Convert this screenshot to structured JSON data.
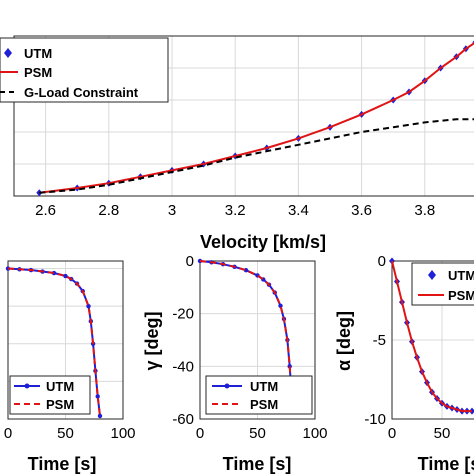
{
  "colors": {
    "utm": "#1f1fd6",
    "psm": "#e01414",
    "gload": "#000000",
    "grid": "#d9d9d9",
    "axis": "#262626"
  },
  "chart_data": [
    {
      "type": "line",
      "xlabel": "Velocity [km/s]",
      "ylabel": "",
      "xlim": [
        2.5,
        4.0
      ],
      "ylim": [
        0,
        1
      ],
      "xticks": [
        "2.6",
        "2.8",
        "3",
        "3.2",
        "3.4",
        "3.6",
        "3.8"
      ],
      "grid": true,
      "legend": "top-left",
      "series": [
        {
          "name": "UTM",
          "style": "diamond-markers",
          "x": [
            2.58,
            2.7,
            2.8,
            2.9,
            3.0,
            3.1,
            3.2,
            3.3,
            3.4,
            3.5,
            3.6,
            3.7,
            3.75,
            3.8,
            3.85,
            3.9,
            3.93,
            3.96,
            3.98,
            4.0
          ],
          "y": [
            0.02,
            0.05,
            0.08,
            0.12,
            0.16,
            0.2,
            0.25,
            0.3,
            0.36,
            0.43,
            0.51,
            0.6,
            0.65,
            0.72,
            0.8,
            0.87,
            0.92,
            0.96,
            0.98,
            1.0
          ]
        },
        {
          "name": "PSM",
          "style": "solid",
          "x": [
            2.58,
            2.7,
            2.8,
            2.9,
            3.0,
            3.1,
            3.2,
            3.3,
            3.4,
            3.5,
            3.6,
            3.7,
            3.75,
            3.8,
            3.85,
            3.9,
            3.93,
            3.96,
            3.98,
            4.0
          ],
          "y": [
            0.02,
            0.05,
            0.08,
            0.12,
            0.16,
            0.2,
            0.25,
            0.3,
            0.36,
            0.43,
            0.51,
            0.6,
            0.65,
            0.72,
            0.8,
            0.87,
            0.92,
            0.96,
            0.98,
            1.0
          ]
        },
        {
          "name": "G-Load Constraint",
          "style": "dashed",
          "x": [
            2.58,
            2.7,
            2.8,
            2.9,
            3.0,
            3.1,
            3.2,
            3.3,
            3.4,
            3.5,
            3.6,
            3.7,
            3.8,
            3.9,
            4.0
          ],
          "y": [
            0.02,
            0.04,
            0.07,
            0.11,
            0.15,
            0.19,
            0.24,
            0.28,
            0.32,
            0.36,
            0.4,
            0.43,
            0.46,
            0.48,
            0.48
          ]
        }
      ]
    },
    {
      "type": "line",
      "xlabel": "Time [s]",
      "ylabel": "",
      "xlim": [
        0,
        100
      ],
      "ylim": [
        -1,
        0.05
      ],
      "xticks": [
        "0",
        "50",
        "100"
      ],
      "grid": true,
      "legend": "bottom-left",
      "series": [
        {
          "name": "UTM",
          "style": "solid-markers",
          "x": [
            0,
            10,
            20,
            30,
            40,
            50,
            55,
            60,
            65,
            70,
            72,
            74,
            76,
            78,
            80
          ],
          "y": [
            0,
            -0.005,
            -0.01,
            -0.02,
            -0.03,
            -0.05,
            -0.07,
            -0.1,
            -0.15,
            -0.25,
            -0.35,
            -0.5,
            -0.68,
            -0.85,
            -0.98
          ]
        },
        {
          "name": "PSM",
          "style": "dashed",
          "x": [
            0,
            10,
            20,
            30,
            40,
            50,
            55,
            60,
            65,
            70,
            72,
            74,
            76,
            78,
            80
          ],
          "y": [
            0,
            -0.005,
            -0.01,
            -0.02,
            -0.03,
            -0.05,
            -0.07,
            -0.1,
            -0.15,
            -0.25,
            -0.35,
            -0.5,
            -0.68,
            -0.85,
            -0.98
          ]
        }
      ]
    },
    {
      "type": "line",
      "xlabel": "Time [s]",
      "ylabel": "γ [deg]",
      "xlim": [
        0,
        100
      ],
      "ylim": [
        -60,
        0
      ],
      "xticks": [
        "0",
        "50",
        "100"
      ],
      "yticks": [
        "0",
        "-20",
        "-40",
        "-60"
      ],
      "grid": true,
      "legend": "bottom-right",
      "series": [
        {
          "name": "UTM",
          "style": "solid-markers",
          "x": [
            0,
            10,
            20,
            30,
            40,
            50,
            55,
            60,
            65,
            70,
            73,
            76,
            78,
            80
          ],
          "y": [
            0,
            -0.5,
            -1.2,
            -2.2,
            -3.5,
            -5.5,
            -7,
            -9,
            -12,
            -17,
            -22,
            -30,
            -40,
            -53
          ]
        },
        {
          "name": "PSM",
          "style": "dashed",
          "x": [
            0,
            10,
            20,
            30,
            40,
            50,
            55,
            60,
            65,
            70,
            73,
            76,
            78,
            80
          ],
          "y": [
            0,
            -0.5,
            -1.2,
            -2.2,
            -3.5,
            -5.5,
            -7,
            -9,
            -12,
            -17,
            -22,
            -30,
            -40,
            -53
          ]
        }
      ]
    },
    {
      "type": "line",
      "xlabel": "Time [s]",
      "ylabel": "α [deg]",
      "xlim": [
        0,
        100
      ],
      "ylim": [
        -10,
        0
      ],
      "xticks": [
        "0",
        "50"
      ],
      "yticks": [
        "0",
        "-5",
        "-10"
      ],
      "grid": true,
      "legend": "top-right",
      "series": [
        {
          "name": "UTM",
          "style": "diamond-markers",
          "x": [
            0,
            5,
            10,
            15,
            20,
            25,
            30,
            35,
            40,
            45,
            50,
            55,
            60,
            65,
            70,
            75,
            80
          ],
          "y": [
            0,
            -1.3,
            -2.6,
            -3.9,
            -5.1,
            -6.1,
            -7,
            -7.7,
            -8.3,
            -8.7,
            -9,
            -9.2,
            -9.3,
            -9.4,
            -9.5,
            -9.5,
            -9.5
          ]
        },
        {
          "name": "PSM",
          "style": "solid",
          "x": [
            0,
            5,
            10,
            15,
            20,
            25,
            30,
            35,
            40,
            45,
            50,
            55,
            60,
            65,
            70,
            75,
            80
          ],
          "y": [
            0,
            -1.3,
            -2.6,
            -3.9,
            -5.1,
            -6.1,
            -7,
            -7.7,
            -8.3,
            -8.7,
            -9,
            -9.2,
            -9.3,
            -9.4,
            -9.5,
            -9.5,
            -9.5
          ]
        }
      ]
    }
  ]
}
